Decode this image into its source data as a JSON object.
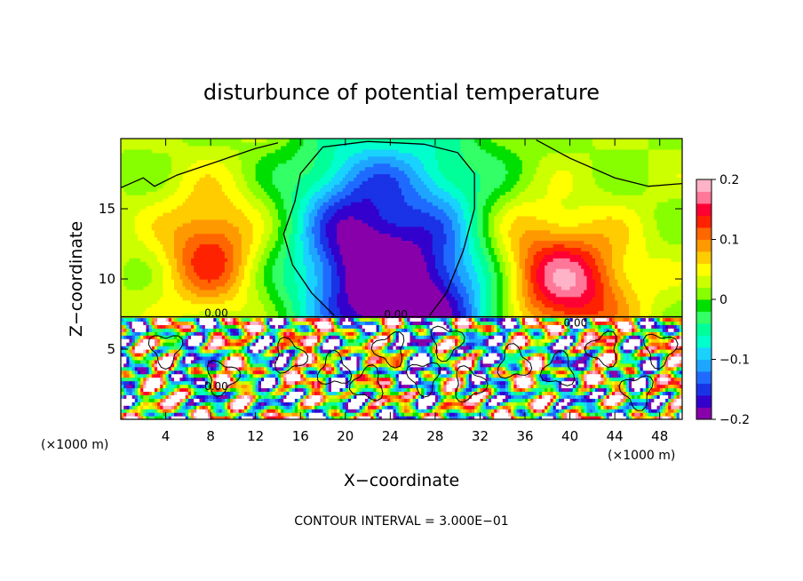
{
  "chart_data": {
    "type": "heatmap",
    "title": "disturbunce of potential temperature",
    "xlabel": "X−coordinate",
    "ylabel": "Z−coordinate",
    "x_unit_left": "(×1000 m)",
    "x_unit_right": "(×1000 m)",
    "footer": "CONTOUR INTERVAL = 3.000E−01",
    "xlim": [
      0,
      50
    ],
    "ylim": [
      0,
      20
    ],
    "x_ticks": [
      4,
      8,
      12,
      16,
      20,
      24,
      28,
      32,
      36,
      40,
      44,
      48
    ],
    "y_ticks": [
      5,
      10,
      15
    ],
    "colorbar": {
      "range": [
        -0.2,
        0.2
      ],
      "tick_values": [
        0.2,
        0.1,
        0,
        -0.1,
        -0.2
      ],
      "tick_labels": [
        "0.2",
        "0.1",
        "0",
        "−0.1",
        "−0.2"
      ],
      "colors": [
        "#8800aa",
        "#3300cc",
        "#1a33e6",
        "#1f6bff",
        "#1ea6ff",
        "#19d2ff",
        "#00ffcc",
        "#00ff99",
        "#33ff66",
        "#00e000",
        "#88ff00",
        "#ccff00",
        "#ffff00",
        "#ffcc00",
        "#ff9900",
        "#ff6600",
        "#ff2200",
        "#ff0033",
        "#ff7799",
        "#ffb3c8"
      ]
    },
    "contour_labels": [
      {
        "text": "0.00",
        "x": 8.5,
        "z": 7.3
      },
      {
        "text": "0.00",
        "x": 24.5,
        "z": 7.2
      },
      {
        "text": "0.00",
        "x": 40.5,
        "z": 6.6
      },
      {
        "text": "0.00",
        "x": 8.5,
        "z": 2.1
      }
    ],
    "field_features": [
      {
        "name": "warm",
        "x": 8,
        "z": 12,
        "value": 0.1
      },
      {
        "name": "cold",
        "x": 25,
        "z": 9,
        "value": -0.2
      },
      {
        "name": "warm",
        "x": 39,
        "z": 9,
        "value": 0.15
      }
    ]
  }
}
